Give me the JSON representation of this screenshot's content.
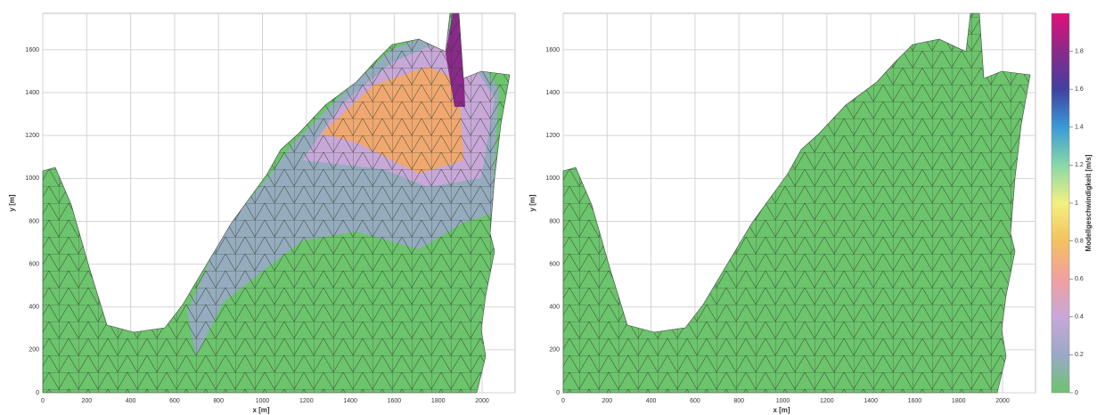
{
  "chart_data": [
    {
      "type": "mesh",
      "xlabel": "x [m]",
      "ylabel": "y [m]",
      "xlim": [
        0,
        2150
      ],
      "ylim": [
        0,
        1770
      ],
      "xticks": [
        0,
        200,
        400,
        600,
        800,
        1000,
        1200,
        1400,
        1600,
        1800,
        2000
      ],
      "yticks": [
        0,
        200,
        400,
        600,
        800,
        1000,
        1200,
        1400,
        1600
      ],
      "grid": true
    },
    {
      "type": "mesh",
      "xlabel": "x [m]",
      "ylabel": "y [m]",
      "xlim": [
        0,
        2150
      ],
      "ylim": [
        0,
        1770
      ],
      "xticks": [
        0,
        200,
        400,
        600,
        800,
        1000,
        1200,
        1400,
        1600,
        1800,
        2000
      ],
      "yticks": [
        0,
        200,
        400,
        600,
        800,
        1000,
        1200,
        1400,
        1600
      ],
      "grid": true
    }
  ],
  "colorbar": {
    "label": "Modellgeschwindigkeit [m/s]",
    "lim": [
      0,
      2
    ],
    "ticks": [
      0,
      0.2,
      0.4,
      0.6,
      0.8,
      1,
      1.2,
      1.4,
      1.6,
      1.8
    ],
    "colors": [
      "#6cc46c",
      "#9aa8c8",
      "#c8a8d8",
      "#f0a0a0",
      "#f4c060",
      "#f4f080",
      "#88d8a8",
      "#3a9ad8",
      "#4040a0",
      "#8a2a8a",
      "#e0107a"
    ]
  }
}
